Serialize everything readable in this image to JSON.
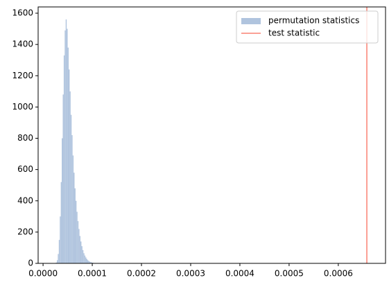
{
  "chart_data": {
    "type": "histogram",
    "series": [
      {
        "name": "permutation statistics",
        "color": "#b0c4de",
        "bins": [
          2.6e-05,
          2.8e-05,
          3e-05,
          3.2e-05,
          3.4e-05,
          3.6e-05,
          3.8e-05,
          4e-05,
          4.2e-05,
          4.4e-05,
          4.6e-05,
          4.8e-05,
          5e-05,
          5.2e-05,
          5.4e-05,
          5.6e-05,
          5.8e-05,
          6e-05,
          6.2e-05,
          6.4e-05,
          6.6e-05,
          6.8e-05,
          7e-05,
          7.2e-05,
          7.4e-05,
          7.6e-05,
          7.8e-05,
          8e-05,
          8.2e-05,
          8.4e-05,
          8.6e-05,
          8.8e-05,
          9e-05,
          9.2e-05,
          9.4e-05,
          9.6e-05,
          9.8e-05,
          0.0001,
          0.000102,
          0.000104,
          0.000106,
          0.000108,
          0.00011
        ],
        "values": [
          5,
          20,
          60,
          150,
          300,
          520,
          800,
          1080,
          1330,
          1490,
          1560,
          1500,
          1380,
          1240,
          1100,
          950,
          820,
          690,
          580,
          480,
          400,
          330,
          270,
          220,
          175,
          140,
          110,
          85,
          65,
          50,
          38,
          28,
          20,
          15,
          11,
          8,
          6,
          4,
          3,
          2,
          1,
          1
        ]
      }
    ],
    "vline": {
      "name": "test statistic",
      "color": "#fa8072",
      "x": 0.000658
    },
    "xlim": [
      -1e-05,
      0.000696
    ],
    "xticks": [
      {
        "value": 0,
        "label": "0.0000"
      },
      0.0001,
      0.0002,
      0.0003,
      0.0004,
      0.0005,
      0.0006
    ],
    "ylim": [
      0,
      1640
    ],
    "yticks": [
      0,
      200,
      400,
      600,
      800,
      1000,
      1200,
      1400,
      1600
    ],
    "legend": "upper right"
  }
}
